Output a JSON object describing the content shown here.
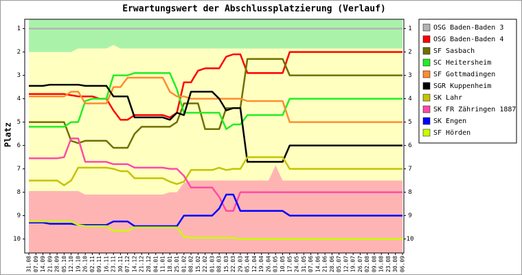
{
  "chart_data": {
    "type": "line",
    "title": "Erwartungswert der Abschlussplatzierung (Verlauf)",
    "y_label": "Platz",
    "categories": [
      "31.08",
      "07.09",
      "14.09",
      "21.09",
      "28.09",
      "05.10",
      "12.10",
      "19.10",
      "26.10",
      "02.11",
      "09.11",
      "16.11",
      "23.11",
      "30.11",
      "07.12",
      "14.12",
      "21.12",
      "28.12",
      "04.01",
      "11.01",
      "18.01",
      "25.01",
      "01.02",
      "08.02",
      "15.02",
      "22.02",
      "01.03",
      "08.03",
      "15.03",
      "22.03",
      "29.03",
      "05.04",
      "12.04",
      "19.04",
      "26.04",
      "03.05",
      "10.05",
      "17.05",
      "24.05",
      "31.05",
      "07.06",
      "14.06",
      "21.06",
      "28.06",
      "05.07",
      "12.07",
      "19.07",
      "26.07",
      "02.08",
      "09.08",
      "16.08",
      "23.08",
      "30.08",
      "06.09"
    ],
    "ylim": [
      10.6,
      0.6
    ],
    "yticks": [
      1,
      2,
      3,
      4,
      5,
      6,
      7,
      8,
      9,
      10
    ],
    "grid": false,
    "legend": "right",
    "upper_zone": {
      "color": "#aaf2aa",
      "values": [
        2,
        2,
        2,
        2,
        2,
        2,
        2,
        1.85,
        1.85,
        1.85,
        1.85,
        1.85,
        1.7,
        1.85,
        1.85,
        1.85,
        1.85,
        1.85,
        1.85,
        1.85,
        1.85,
        1.85,
        1.85,
        1.85,
        1.85,
        1.85,
        1.85,
        1.85,
        1.85,
        1.85,
        1.85,
        1.85,
        1.85,
        1.85,
        1.85,
        1.85,
        1.85,
        1.85,
        1.85,
        1.85,
        1.85,
        1.85,
        1.85,
        1.85,
        1.85,
        1.85,
        1.85,
        1.85,
        1.85,
        1.85,
        1.85,
        1.85,
        1.85,
        1.85
      ]
    },
    "middle_zone_color": "#ffffc0",
    "lower_zone": {
      "color": "#ffb4b4",
      "values": [
        7.95,
        7.95,
        7.95,
        7.95,
        7.95,
        7.95,
        7.95,
        7.95,
        8.1,
        8.1,
        8.1,
        8.1,
        8.1,
        8.1,
        8.1,
        8.1,
        8.1,
        8.1,
        8.1,
        8.1,
        8,
        8,
        7.6,
        7.5,
        7.5,
        7.5,
        7.5,
        7.5,
        7.5,
        7.5,
        7.5,
        7.5,
        7.5,
        7.5,
        7.5,
        6.85,
        7.5,
        7.5,
        7.5,
        7.5,
        7.5,
        7.5,
        7.5,
        7.5,
        7.5,
        7.5,
        7.5,
        7.5,
        7.5,
        7.5,
        7.5,
        7.5,
        7.5,
        7.5
      ]
    },
    "series": [
      {
        "name": "OSG Baden-Baden 3",
        "color": "#b4b4b4",
        "values": [
          1,
          1,
          1,
          1,
          1,
          1,
          1,
          1,
          1,
          1,
          1,
          1,
          1,
          1,
          1,
          1,
          1,
          1,
          1,
          1,
          1,
          1,
          1,
          1,
          1,
          1,
          1,
          1,
          1,
          1,
          1,
          1,
          1,
          1,
          1,
          1,
          1,
          1,
          1,
          1,
          1,
          1,
          1,
          1,
          1,
          1,
          1,
          1,
          1,
          1,
          1,
          1,
          1,
          1
        ]
      },
      {
        "name": "OSG Baden-Baden 4",
        "color": "#ff0000",
        "values": [
          3.8,
          3.8,
          3.8,
          3.8,
          3.8,
          3.8,
          3.85,
          3.9,
          3.9,
          3.9,
          4,
          4,
          4.5,
          4.9,
          4.9,
          4.7,
          4.7,
          4.7,
          4.7,
          4.7,
          4.8,
          4.6,
          3.3,
          3.3,
          2.8,
          2.7,
          2.7,
          2.7,
          2.2,
          2.1,
          2.1,
          2.9,
          2.9,
          2.9,
          2.9,
          2.9,
          2.9,
          2,
          2,
          2,
          2,
          2,
          2,
          2,
          2,
          2,
          2,
          2,
          2,
          2,
          2,
          2,
          2,
          2
        ]
      },
      {
        "name": "SF Sasbach",
        "color": "#707000",
        "values": [
          5,
          5,
          5,
          5,
          5,
          5,
          5.8,
          5.9,
          5.8,
          5.8,
          5.8,
          5.8,
          6.1,
          6.1,
          6.1,
          5.5,
          5.2,
          5.2,
          5.2,
          5.2,
          5.2,
          5,
          4.2,
          4.2,
          4.2,
          5.3,
          5.3,
          5.3,
          4.4,
          4.4,
          4.4,
          2.3,
          2.3,
          2.3,
          2.3,
          2.3,
          2.3,
          3,
          3,
          3,
          3,
          3,
          3,
          3,
          3,
          3,
          3,
          3,
          3,
          3,
          3,
          3,
          3,
          3
        ]
      },
      {
        "name": "SC Heitersheim",
        "color": "#22ee22",
        "values": [
          5.2,
          5.2,
          5.2,
          5.2,
          5.2,
          5.2,
          5,
          5,
          4.1,
          4,
          4,
          4,
          3,
          3,
          3,
          2.9,
          2.9,
          2.9,
          2.9,
          2.9,
          2.9,
          3.6,
          4.6,
          4.6,
          4.6,
          4.6,
          4.6,
          4.6,
          5.3,
          5.1,
          5.1,
          4.7,
          4.7,
          4.7,
          4.7,
          4.7,
          4.7,
          4,
          4,
          4,
          4,
          4,
          4,
          4,
          4,
          4,
          4,
          4,
          4,
          4,
          4,
          4,
          4,
          4
        ]
      },
      {
        "name": "SF Gottmadingen",
        "color": "#ff8c30",
        "values": [
          3.9,
          3.9,
          3.9,
          3.9,
          3.9,
          3.9,
          3.7,
          3.7,
          4.2,
          4.2,
          4.2,
          4.2,
          3.5,
          3.5,
          3.1,
          3.1,
          3.1,
          3.1,
          3.1,
          3.1,
          3.7,
          3.9,
          3.9,
          4,
          4,
          4,
          4,
          4,
          4,
          4,
          4,
          4.1,
          4.1,
          4.1,
          4.1,
          4.1,
          4.1,
          5,
          5,
          5,
          5,
          5,
          5,
          5,
          5,
          5,
          5,
          5,
          5,
          5,
          5,
          5,
          5,
          5
        ]
      },
      {
        "name": "SGR Kuppenheim",
        "color": "#000000",
        "values": [
          3.45,
          3.45,
          3.45,
          3.4,
          3.4,
          3.4,
          3.4,
          3.4,
          3.45,
          3.45,
          3.45,
          3.45,
          3.9,
          3.9,
          3.9,
          4.8,
          4.8,
          4.8,
          4.8,
          4.8,
          4.9,
          4.6,
          4.7,
          3.7,
          3.7,
          3.7,
          3.7,
          4,
          4.5,
          4.4,
          4.4,
          6.7,
          6.7,
          6.7,
          6.7,
          6.7,
          6.7,
          6,
          6,
          6,
          6,
          6,
          6,
          6,
          6,
          6,
          6,
          6,
          6,
          6,
          6,
          6,
          6,
          6
        ]
      },
      {
        "name": "SK Lahr",
        "color": "#c4c400",
        "values": [
          7.5,
          7.5,
          7.5,
          7.5,
          7.5,
          7.7,
          7.5,
          6.95,
          6.95,
          6.95,
          6.95,
          6.95,
          7,
          7.1,
          7.1,
          7.4,
          7.4,
          7.4,
          7.4,
          7.4,
          7.55,
          7.65,
          7.55,
          7.05,
          7.05,
          7.05,
          7.05,
          6.95,
          7.05,
          7,
          7,
          6.5,
          6.5,
          6.5,
          6.5,
          6.5,
          6.5,
          7,
          7,
          7,
          7,
          7,
          7,
          7,
          7,
          7,
          7,
          7,
          7,
          7,
          7,
          7,
          7,
          7
        ]
      },
      {
        "name": "SK FR Zähringen 1887",
        "color": "#ff4aa8",
        "values": [
          6.55,
          6.55,
          6.55,
          6.55,
          6.55,
          6.5,
          5.7,
          5.7,
          6.7,
          6.7,
          6.7,
          6.7,
          6.8,
          6.8,
          6.8,
          6.95,
          6.95,
          6.95,
          6.95,
          6.95,
          7,
          7,
          7.3,
          7.8,
          7.8,
          7.8,
          7.8,
          8.2,
          8.8,
          8.8,
          8,
          8,
          8,
          8,
          8,
          8,
          8,
          8,
          8,
          8,
          8,
          8,
          8,
          8,
          8,
          8,
          8,
          8,
          8,
          8,
          8,
          8,
          8,
          8
        ]
      },
      {
        "name": "SK Engen",
        "color": "#0000ff",
        "values": [
          9.3,
          9.3,
          9.3,
          9.35,
          9.35,
          9.35,
          9.35,
          9.4,
          9.4,
          9.4,
          9.4,
          9.4,
          9.25,
          9.25,
          9.25,
          9.45,
          9.45,
          9.45,
          9.45,
          9.45,
          9.45,
          9.45,
          9,
          9,
          9,
          9,
          9,
          8.7,
          8.1,
          8.1,
          8.8,
          8.8,
          8.8,
          8.8,
          8.8,
          8.8,
          8.8,
          9,
          9,
          9,
          9,
          9,
          9,
          9,
          9,
          9,
          9,
          9,
          9,
          9,
          9,
          9,
          9,
          9
        ]
      },
      {
        "name": "SF Hörden",
        "color": "#c8ff00",
        "values": [
          9.25,
          9.25,
          9.25,
          9.25,
          9.25,
          9.25,
          9.25,
          9.4,
          9.45,
          9.45,
          9.45,
          9.45,
          9.65,
          9.65,
          9.65,
          9.5,
          9.5,
          9.5,
          9.5,
          9.5,
          9.5,
          9.5,
          9.9,
          9.95,
          9.95,
          9.95,
          9.95,
          9.95,
          9.95,
          9.95,
          10,
          10,
          10,
          10,
          10,
          10,
          10,
          10,
          10,
          10,
          10,
          10,
          10,
          10,
          10,
          10,
          10,
          10,
          10,
          10,
          10,
          10,
          10,
          10
        ]
      }
    ]
  }
}
